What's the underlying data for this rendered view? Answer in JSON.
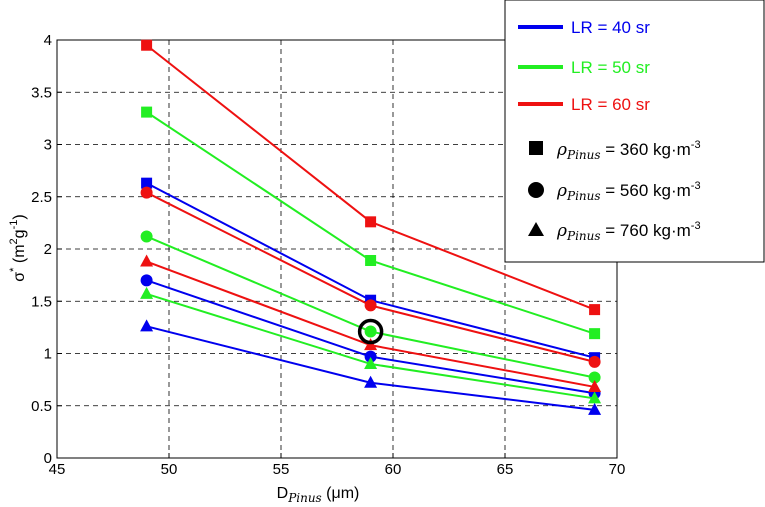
{
  "chart_data": {
    "type": "line",
    "xlabel": {
      "main": "D",
      "sub": "Pinus",
      "unit": " (μm)"
    },
    "ylabel": {
      "main": "σ",
      "sup": "*",
      "unit_open": " (m",
      "unit_sup1": "2",
      "unit_mid": "g",
      "unit_sup2": "-1",
      "unit_close": ")"
    },
    "xlim": [
      45,
      70
    ],
    "ylim": [
      0,
      4
    ],
    "xticks": [
      "45",
      "50",
      "55",
      "60",
      "65",
      "70"
    ],
    "yticks": [
      "0",
      "0.5",
      "1",
      "1.5",
      "2",
      "2.5",
      "3",
      "3.5",
      "4"
    ],
    "grid": true,
    "grid_style": "dashed",
    "x": [
      49,
      59,
      69
    ],
    "series": [
      {
        "name": "LR = 40 sr",
        "color": "#0000ee",
        "marker": "square",
        "values": [
          2.63,
          1.51,
          0.96
        ]
      },
      {
        "name": "LR = 40 sr",
        "color": "#0000ee",
        "marker": "circle",
        "values": [
          1.7,
          0.97,
          0.62
        ]
      },
      {
        "name": "LR = 40 sr",
        "color": "#0000ee",
        "marker": "triangle",
        "values": [
          1.26,
          0.72,
          0.46
        ]
      },
      {
        "name": "LR = 50 sr",
        "color": "#22ee22",
        "marker": "square",
        "values": [
          3.31,
          1.89,
          1.19
        ]
      },
      {
        "name": "LR = 50 sr",
        "color": "#22ee22",
        "marker": "circle",
        "values": [
          2.12,
          1.21,
          0.77
        ]
      },
      {
        "name": "LR = 50 sr",
        "color": "#22ee22",
        "marker": "triangle",
        "values": [
          1.57,
          0.9,
          0.57
        ]
      },
      {
        "name": "LR = 60 sr",
        "color": "#ee1111",
        "marker": "square",
        "values": [
          3.95,
          2.26,
          1.42
        ]
      },
      {
        "name": "LR = 60 sr",
        "color": "#ee1111",
        "marker": "circle",
        "values": [
          2.54,
          1.46,
          0.92
        ]
      },
      {
        "name": "LR = 60 sr",
        "color": "#ee1111",
        "marker": "triangle",
        "values": [
          1.88,
          1.08,
          0.68
        ]
      }
    ],
    "highlight": {
      "x": 59,
      "y": 1.21,
      "shape": "ring",
      "color": "#000000"
    },
    "legend": {
      "placement": "top-right",
      "lines": [
        {
          "label": "LR = 40 sr",
          "color": "#0000ee"
        },
        {
          "label": "LR = 50 sr",
          "color": "#22ee22"
        },
        {
          "label": "LR = 60 sr",
          "color": "#ee1111"
        }
      ],
      "markers": [
        {
          "marker": "square",
          "symbol": "ρ",
          "sub": "Pinus",
          "eq": " = 360 kg·m",
          "exp": "-3"
        },
        {
          "marker": "circle",
          "symbol": "ρ",
          "sub": "Pinus",
          "eq": " = 560 kg·m",
          "exp": "-3"
        },
        {
          "marker": "triangle",
          "symbol": "ρ",
          "sub": "Pinus",
          "eq": " = 760 kg·m",
          "exp": "-3"
        }
      ]
    }
  }
}
